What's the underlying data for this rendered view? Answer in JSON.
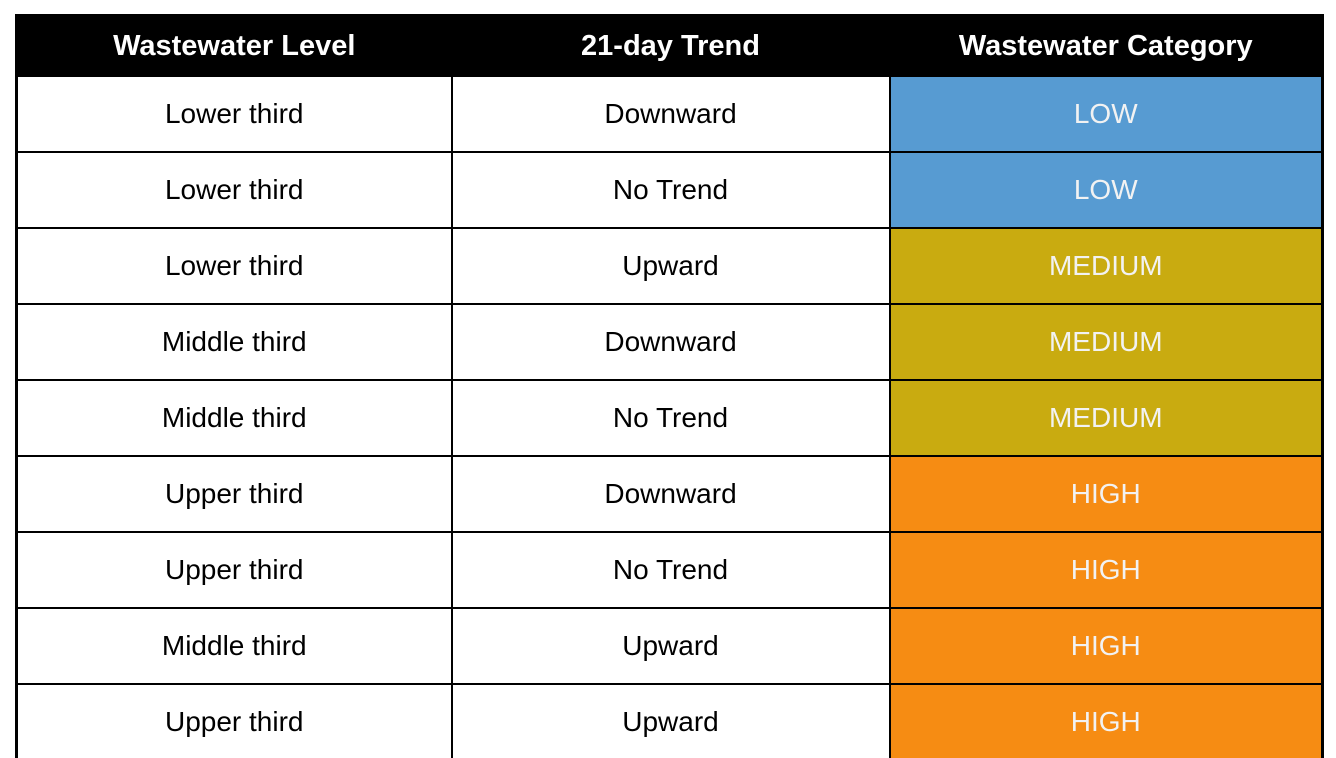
{
  "chart_data": {
    "type": "table",
    "columns": [
      "Wastewater Level",
      "21-day Trend",
      "Wastewater Category"
    ],
    "rows": [
      {
        "level": "Lower third",
        "trend": "Downward",
        "category": "LOW"
      },
      {
        "level": "Lower third",
        "trend": "No Trend",
        "category": "LOW"
      },
      {
        "level": "Lower third",
        "trend": "Upward",
        "category": "MEDIUM"
      },
      {
        "level": "Middle third",
        "trend": "Downward",
        "category": "MEDIUM"
      },
      {
        "level": "Middle third",
        "trend": "No Trend",
        "category": "MEDIUM"
      },
      {
        "level": "Upper third",
        "trend": "Downward",
        "category": "HIGH"
      },
      {
        "level": "Upper third",
        "trend": "No Trend",
        "category": "HIGH"
      },
      {
        "level": "Middle third",
        "trend": "Upward",
        "category": "HIGH"
      },
      {
        "level": "Upper third",
        "trend": "Upward",
        "category": "HIGH"
      }
    ],
    "category_colors": {
      "LOW": "#579BD2",
      "MEDIUM": "#C9AB10",
      "HIGH": "#F68C13"
    },
    "category_text_color": "#F2F2F2",
    "header_bg": "#000000",
    "header_text_color": "#FFFFFF",
    "border_color": "#000000",
    "page_bg": "#FFFFFF"
  }
}
